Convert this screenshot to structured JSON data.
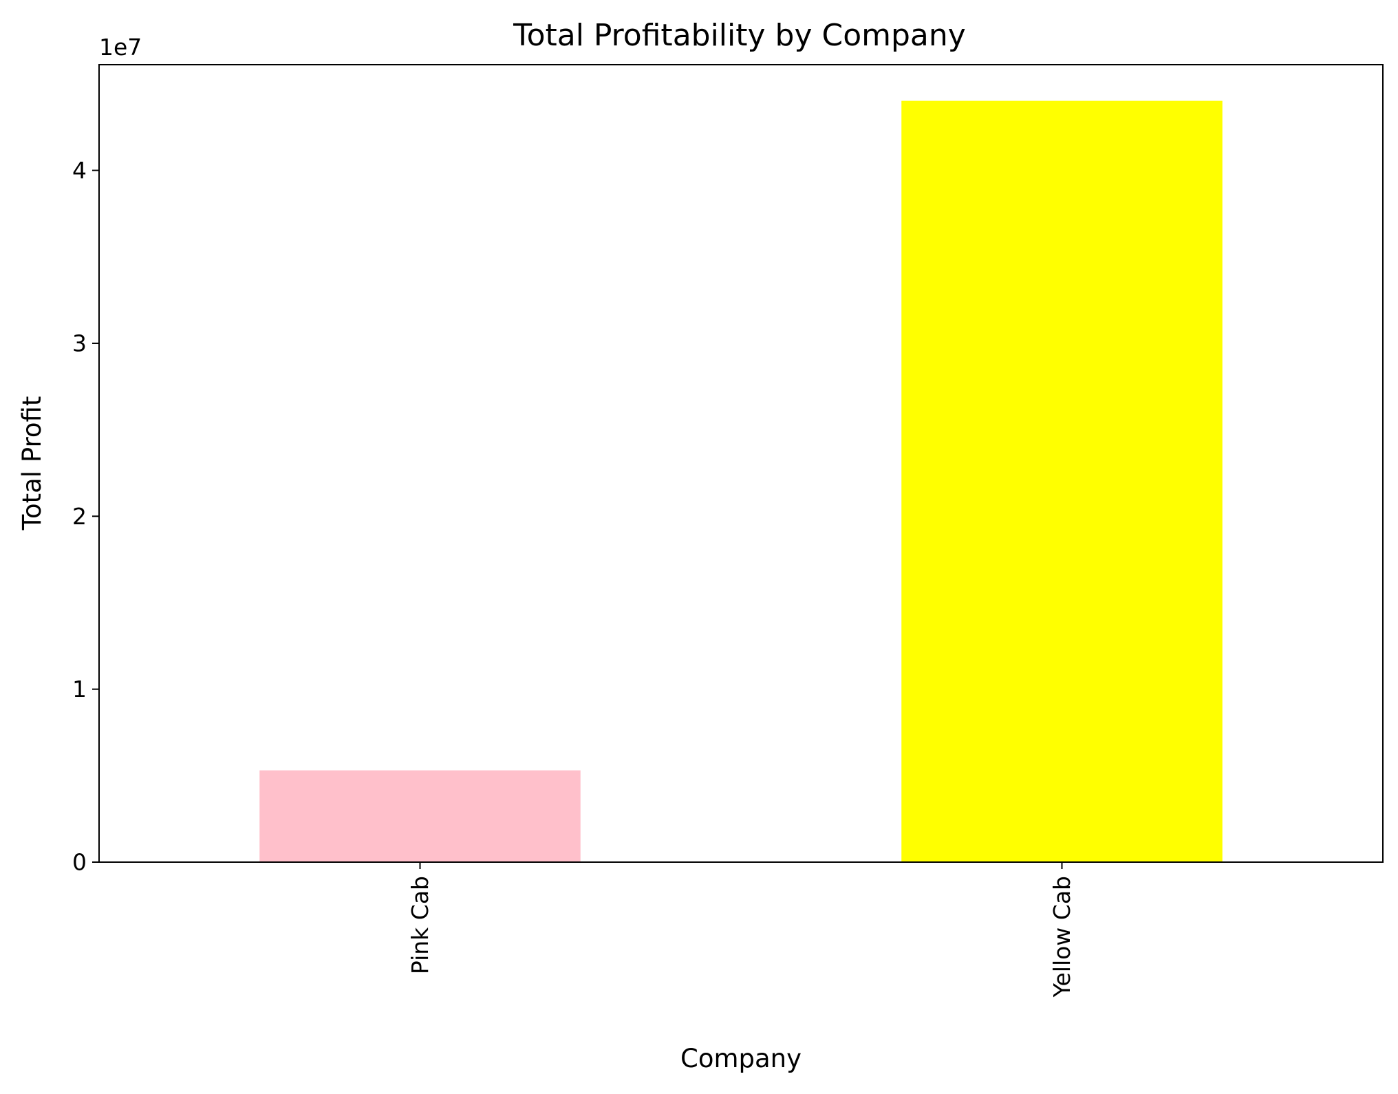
{
  "chart_data": {
    "type": "bar",
    "title": "Total Profitability by Company",
    "xlabel": "Company",
    "ylabel": "Total Profit",
    "offset_text": "1e7",
    "categories": [
      "Pink Cab",
      "Yellow Cab"
    ],
    "values": [
      5307328,
      44020373
    ],
    "bar_colors": [
      "#ffc0cb",
      "#ffff00"
    ],
    "ylim": [
      0,
      46111820
    ],
    "yticks": [
      0,
      10000000,
      20000000,
      30000000,
      40000000
    ],
    "ytick_labels": [
      "0",
      "1",
      "2",
      "3",
      "4"
    ],
    "grid": false,
    "legend": false
  }
}
